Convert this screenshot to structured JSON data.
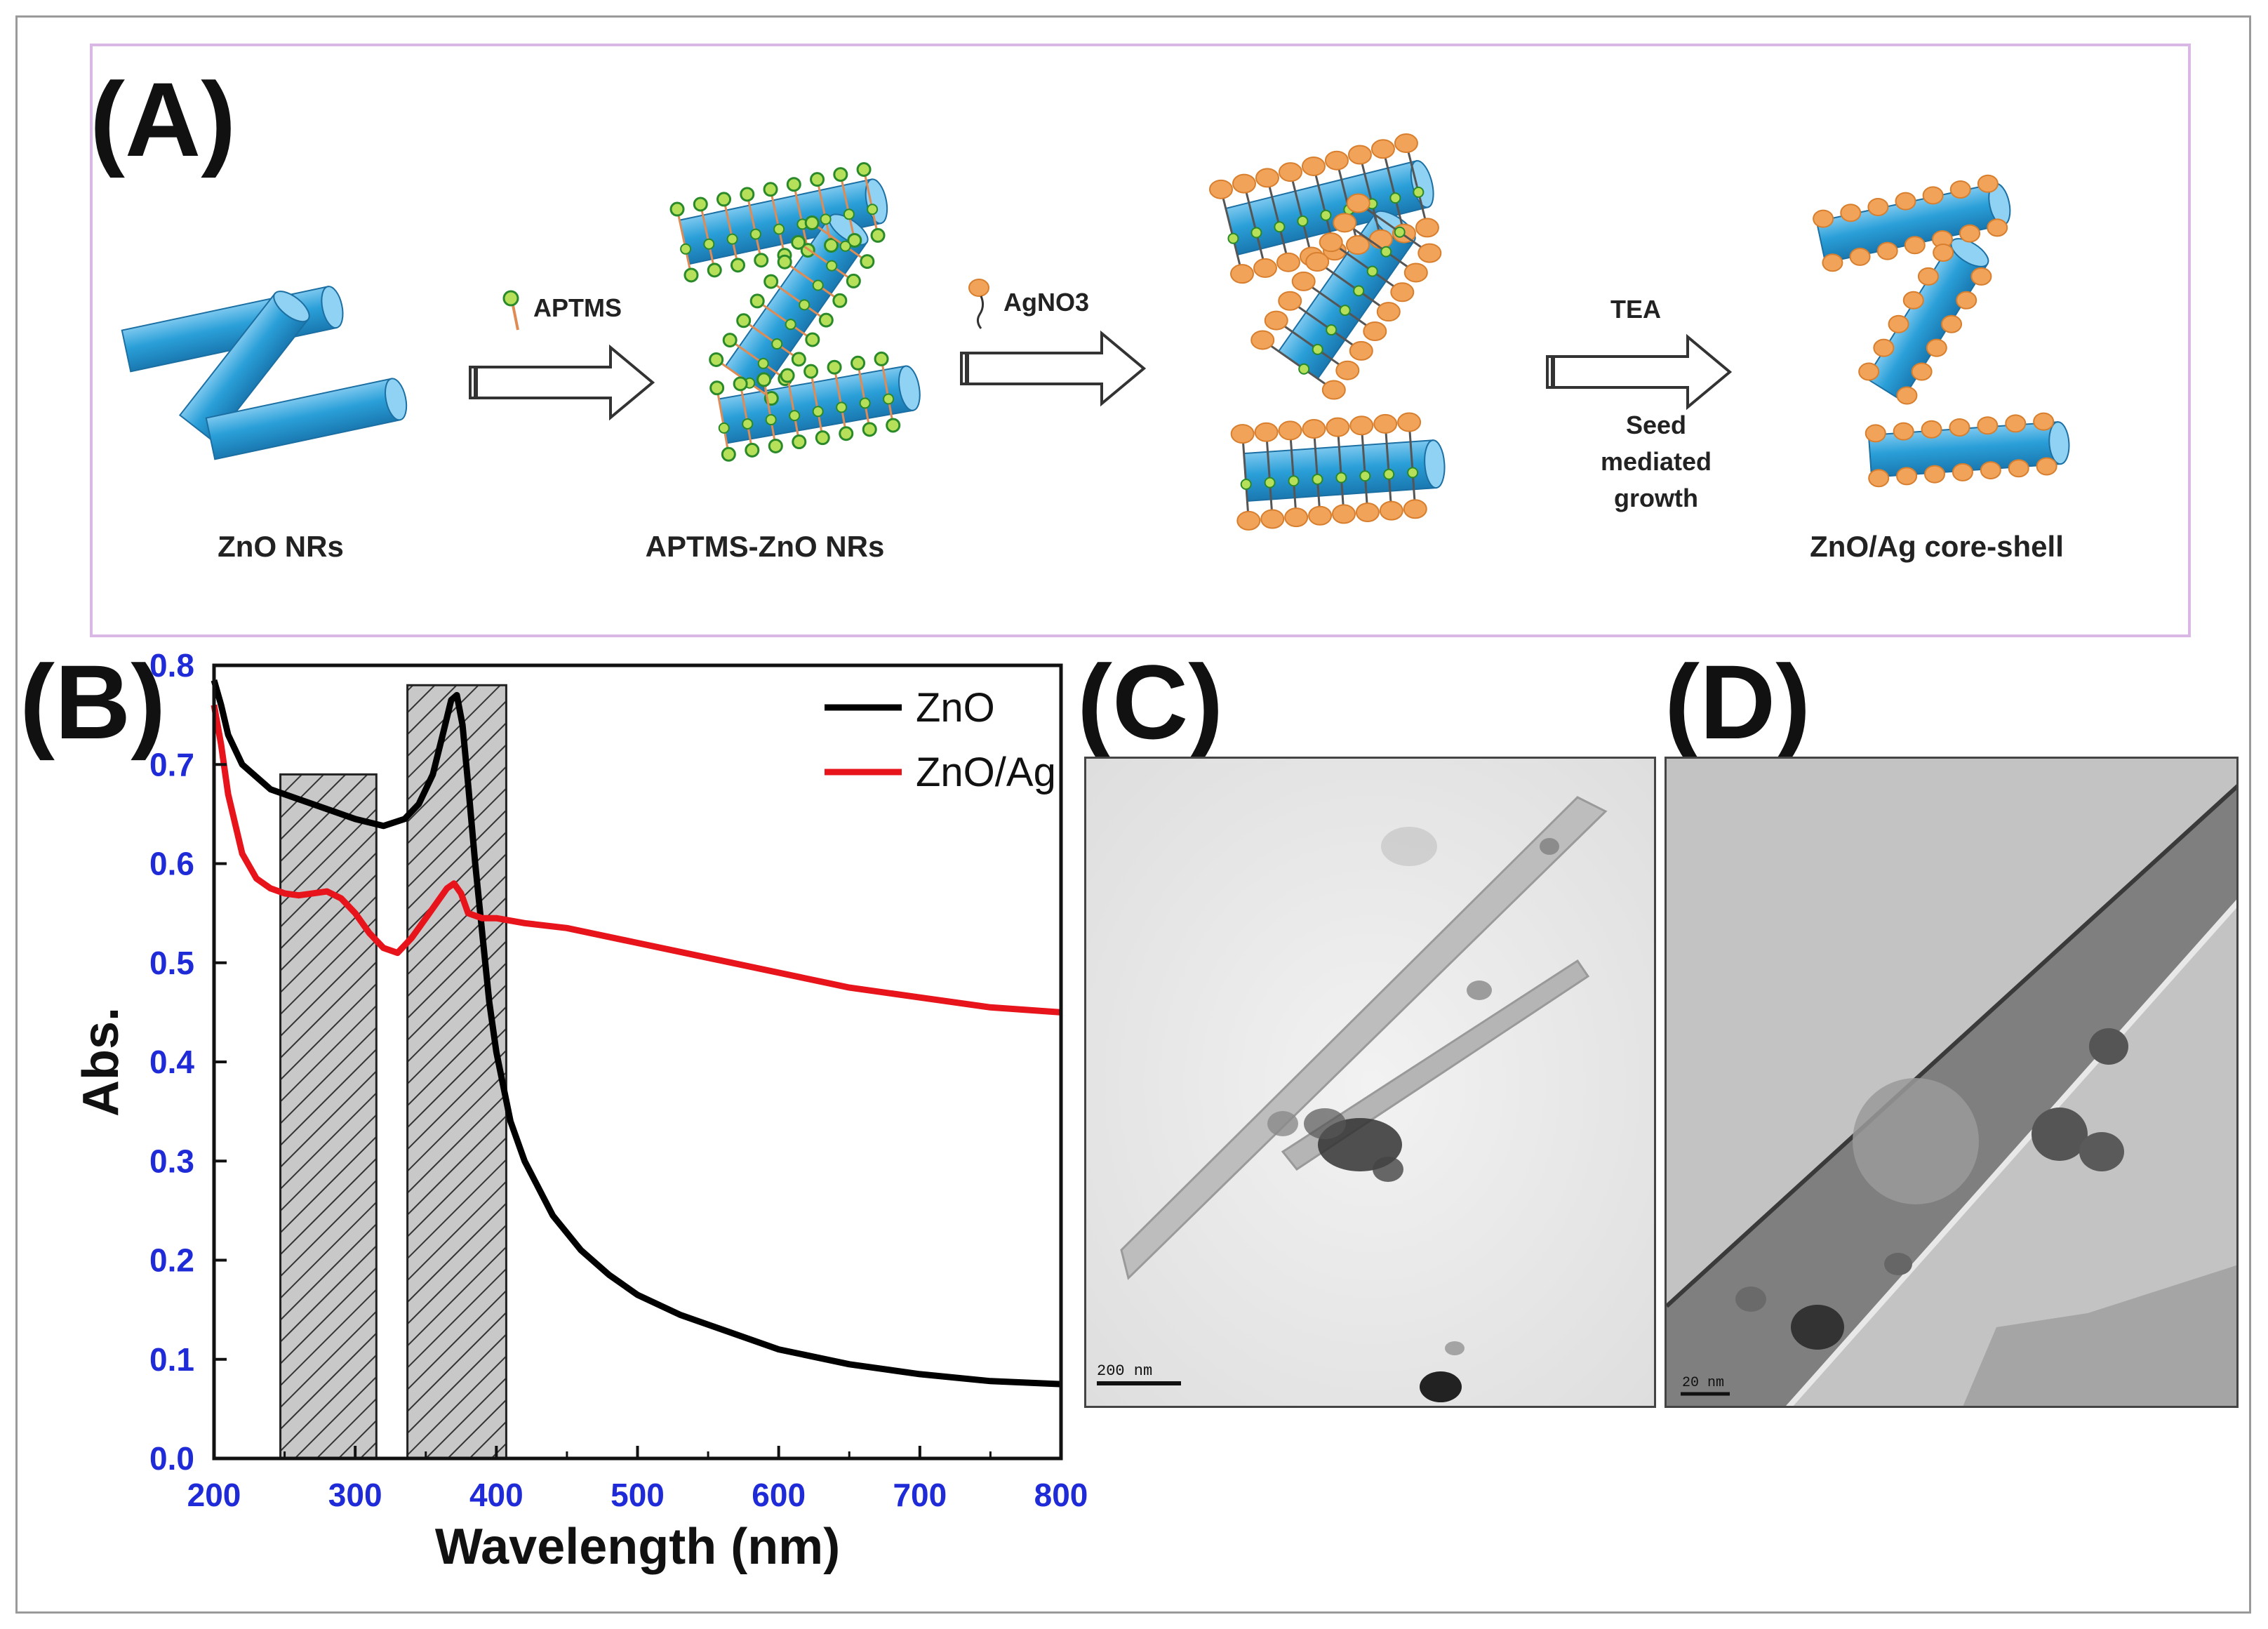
{
  "panels": {
    "a": "(A)",
    "b": "(B)",
    "c": "(C)",
    "d": "(D)"
  },
  "scheme": {
    "step1": "ZnO NRs",
    "step2": "APTMS-ZnO NRs",
    "step4": "ZnO/Ag core-shell",
    "reagent1": "APTMS",
    "reagent2": "AgNO3",
    "reagent3": "TEA",
    "note3": [
      "Seed",
      "mediated",
      "growth"
    ]
  },
  "tem": {
    "c_scale": "200 nm",
    "d_scale": "20 nm"
  },
  "colors": {
    "zno": "#000000",
    "znoag": "#e8141c",
    "rod": "#2a9fd8",
    "ag": "#f2a35a",
    "tick": "#1f2bd6"
  },
  "chart_data": {
    "type": "line",
    "title": "",
    "xlabel": "Wavelength (nm)",
    "ylabel": "Abs.",
    "xlim": [
      200,
      800
    ],
    "ylim": [
      0.0,
      0.8
    ],
    "xticks": [
      200,
      300,
      400,
      500,
      600,
      700,
      800
    ],
    "yticks": [
      "0.0",
      "0.1",
      "0.2",
      "0.3",
      "0.4",
      "0.5",
      "0.6",
      "0.7",
      "0.8"
    ],
    "legend_position": "top-right",
    "highlight_regions": [
      {
        "x": [
          247,
          315
        ],
        "top": 0.69
      },
      {
        "x": [
          337,
          407
        ],
        "top": 0.78
      }
    ],
    "series": [
      {
        "name": "ZnO",
        "color": "#000000",
        "x": [
          200,
          205,
          210,
          220,
          240,
          260,
          280,
          300,
          320,
          335,
          345,
          355,
          362,
          368,
          372,
          376,
          380,
          385,
          390,
          395,
          400,
          410,
          420,
          440,
          460,
          480,
          500,
          530,
          560,
          600,
          650,
          700,
          750,
          800
        ],
        "y": [
          0.785,
          0.76,
          0.73,
          0.7,
          0.675,
          0.665,
          0.655,
          0.645,
          0.638,
          0.645,
          0.66,
          0.69,
          0.73,
          0.765,
          0.77,
          0.74,
          0.68,
          0.6,
          0.53,
          0.46,
          0.41,
          0.34,
          0.3,
          0.245,
          0.21,
          0.185,
          0.165,
          0.145,
          0.13,
          0.11,
          0.095,
          0.085,
          0.078,
          0.075
        ]
      },
      {
        "name": "ZnO/Ag",
        "color": "#e8141c",
        "x": [
          200,
          205,
          210,
          220,
          230,
          240,
          250,
          260,
          270,
          280,
          290,
          300,
          310,
          320,
          330,
          340,
          350,
          360,
          365,
          370,
          375,
          380,
          390,
          400,
          420,
          450,
          500,
          550,
          600,
          650,
          700,
          750,
          800
        ],
        "y": [
          0.76,
          0.72,
          0.67,
          0.61,
          0.585,
          0.575,
          0.57,
          0.568,
          0.57,
          0.572,
          0.565,
          0.55,
          0.53,
          0.515,
          0.51,
          0.525,
          0.545,
          0.565,
          0.575,
          0.58,
          0.57,
          0.55,
          0.545,
          0.545,
          0.54,
          0.535,
          0.52,
          0.505,
          0.49,
          0.475,
          0.465,
          0.455,
          0.45
        ]
      }
    ]
  }
}
